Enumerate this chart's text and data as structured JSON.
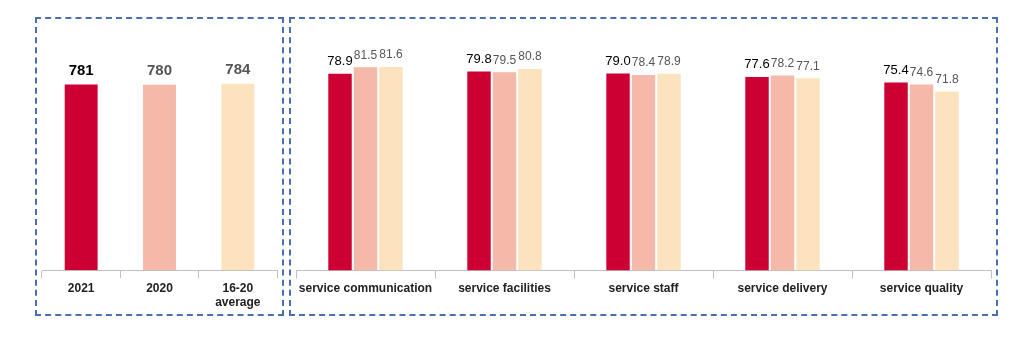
{
  "chart_data": [
    {
      "type": "bar",
      "categories": [
        "2021",
        "2020",
        "16-20 average"
      ],
      "values": [
        781,
        780,
        784
      ],
      "colors": [
        "#cc0033",
        "#f5b9a9",
        "#fde3bd"
      ],
      "tick_labels": "x",
      "data_labels": true
    },
    {
      "type": "bar",
      "categories": [
        "service communication",
        "service facilities",
        "service staff",
        "service delivery",
        "service quality"
      ],
      "series": [
        {
          "color": "#cc0033",
          "values": [
            78.9,
            79.8,
            79.0,
            77.6,
            75.4
          ],
          "value_labels": [
            "78.9",
            "79.8",
            "79.0",
            "77.6",
            "75.4"
          ]
        },
        {
          "color": "#f5b9a9",
          "values": [
            81.5,
            79.5,
            78.4,
            78.2,
            74.6
          ],
          "value_labels": [
            "81.5",
            "79.5",
            "78.4",
            "78.2",
            "74.6"
          ]
        },
        {
          "color": "#fde3bd",
          "values": [
            81.6,
            80.8,
            78.9,
            77.1,
            71.8
          ],
          "value_labels": [
            "81.6",
            "80.8",
            "78.9",
            "77.1",
            "71.8"
          ]
        }
      ],
      "tick_labels": "x"
    }
  ]
}
